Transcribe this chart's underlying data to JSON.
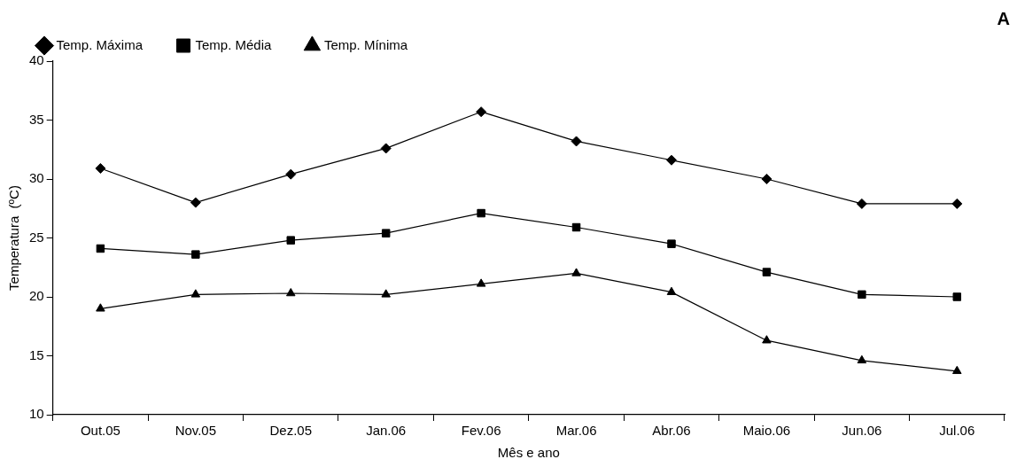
{
  "chart_data": {
    "type": "line",
    "xlabel": "Mês e ano",
    "ylabel": "Temperatura  (ºC)",
    "annotations": [
      "A"
    ],
    "categories": [
      "Out.05",
      "Nov.05",
      "Dez.05",
      "Jan.06",
      "Fev.06",
      "Mar.06",
      "Abr.06",
      "Maio.06",
      "Jun.06",
      "Jul.06"
    ],
    "series": [
      {
        "name": "Temp. Máxima",
        "color": "#000000",
        "marker": "diamond",
        "values": [
          30.9,
          28.0,
          30.4,
          32.6,
          35.7,
          33.2,
          31.6,
          30.0,
          27.9,
          27.9
        ]
      },
      {
        "name": "Temp. Média",
        "color": "#000000",
        "marker": "square",
        "values": [
          24.1,
          23.6,
          24.8,
          25.4,
          27.1,
          25.9,
          24.5,
          22.1,
          20.2,
          20.0
        ]
      },
      {
        "name": "Temp. Mínima",
        "color": "#000000",
        "marker": "triangle",
        "values": [
          19.0,
          20.2,
          20.3,
          20.2,
          21.1,
          22.0,
          20.4,
          16.3,
          14.6,
          13.7
        ]
      }
    ],
    "ylim": [
      10,
      40
    ],
    "yticks": [
      10,
      15,
      20,
      25,
      30,
      35,
      40
    ],
    "grid": false,
    "legend": "top left",
    "line_style": "solid"
  }
}
